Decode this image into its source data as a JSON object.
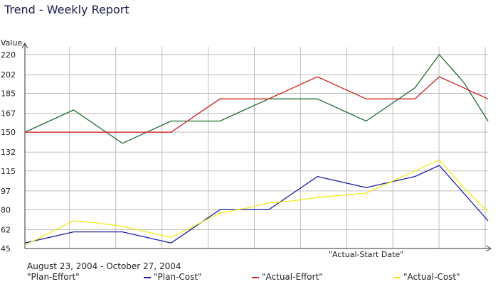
{
  "chart_data": {
    "type": "line",
    "title": "Trend - Weekly Report",
    "ylabel": "Value",
    "xlabel": "\"Actual-Start Date\"",
    "date_range": "August 23, 2004 - October 27, 2004",
    "ylim": [
      45,
      227
    ],
    "yticks": [
      45,
      62,
      80,
      97,
      115,
      132,
      150,
      167,
      185,
      202,
      220
    ],
    "x": [
      1,
      2,
      3,
      4,
      5,
      6,
      7,
      8,
      9,
      10,
      11,
      12,
      13,
      14,
      15,
      16,
      17,
      18,
      19,
      20
    ],
    "grid": true,
    "series": [
      {
        "name": "\"Plan-Effort\"",
        "color": "#1f6b2f",
        "values": [
          150,
          160,
          170,
          155,
          140,
          150,
          160,
          160,
          160,
          170,
          180,
          180,
          180,
          170,
          160,
          175,
          190,
          220,
          195,
          160
        ]
      },
      {
        "name": "\"Plan-Cost\"",
        "color": "#1a1aa0",
        "values": [
          50,
          55,
          60,
          60,
          60,
          55,
          50,
          65,
          80,
          80,
          80,
          95,
          110,
          105,
          100,
          105,
          110,
          120,
          95,
          70
        ]
      },
      {
        "name": "\"Actual-Effort\"",
        "color": "#d21f1f",
        "values": [
          150,
          150,
          150,
          150,
          150,
          150,
          150,
          165,
          180,
          180,
          180,
          190,
          200,
          190,
          180,
          180,
          180,
          200,
          190,
          180
        ]
      },
      {
        "name": "\"Actual-Cost\"",
        "color": "#f2ea18",
        "values": [
          48,
          59,
          70,
          68,
          65,
          60,
          55,
          66,
          77,
          81,
          86,
          88,
          91,
          93,
          95,
          105,
          115,
          125,
          100,
          78
        ]
      }
    ]
  }
}
